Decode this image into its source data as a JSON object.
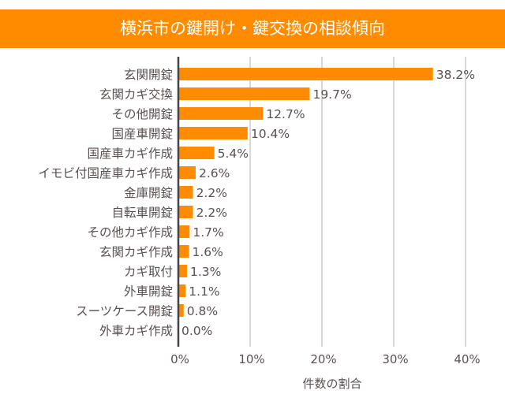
{
  "chart_data": {
    "type": "bar",
    "orientation": "horizontal",
    "title": "横浜市の鍵開け・鍵交換の相談傾向",
    "xlabel": "件数の割合",
    "ylabel": "",
    "xlim": [
      0,
      40
    ],
    "xticks": [
      "0%",
      "10%",
      "20%",
      "30%",
      "40%"
    ],
    "grid": true,
    "bar_color": "#FF8C00",
    "categories": [
      "玄関開錠",
      "玄関カギ交換",
      "その他開錠",
      "国産車開錠",
      "国産車カギ作成",
      "イモビ付国産車カギ作成",
      "金庫開錠",
      "自転車開錠",
      "その他カギ作成",
      "玄関カギ作成",
      "カギ取付",
      "外車開錠",
      "スーツケース開錠",
      "外車カギ作成"
    ],
    "values": [
      38.2,
      19.7,
      12.7,
      10.4,
      5.4,
      2.6,
      2.2,
      2.2,
      1.7,
      1.6,
      1.3,
      1.1,
      0.8,
      0.0
    ],
    "data_labels": [
      "38.2%",
      "19.7%",
      "12.7%",
      "10.4%",
      "5.4%",
      "2.6%",
      "2.2%",
      "2.2%",
      "1.7%",
      "1.6%",
      "1.3%",
      "1.1%",
      "0.8%",
      "0.0%"
    ]
  }
}
